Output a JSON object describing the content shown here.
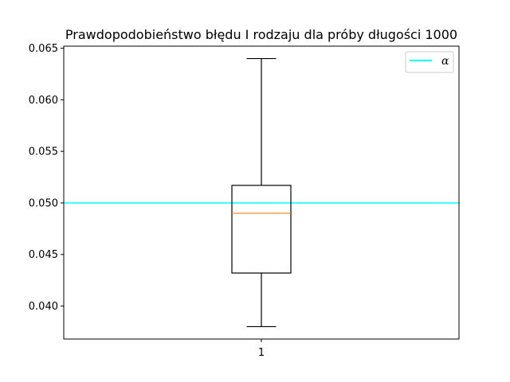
{
  "chart_data": {
    "type": "box",
    "title": "Prawdopodobieństwo błędu I rodzaju dla próby długości 1000",
    "xlabel": "",
    "ylabel": "",
    "categories": [
      "1"
    ],
    "ylim": [
      0.0368,
      0.0652
    ],
    "yticks": [
      0.04,
      0.045,
      0.05,
      0.055,
      0.06,
      0.065
    ],
    "ytick_labels": [
      "0.040",
      "0.045",
      "0.050",
      "0.055",
      "0.060",
      "0.065"
    ],
    "box": {
      "whisker_low": 0.038,
      "q1": 0.0432,
      "median": 0.049,
      "q3": 0.0517,
      "whisker_high": 0.064
    },
    "reference_line": {
      "label": "α",
      "value": 0.05,
      "color": "#00ffff"
    },
    "legend": {
      "position": "top-right",
      "entries": [
        {
          "label": "α",
          "color": "#00ffff"
        }
      ]
    },
    "colors": {
      "box": "#000000",
      "median": "#ff7f0e",
      "axes": "#000000"
    }
  }
}
